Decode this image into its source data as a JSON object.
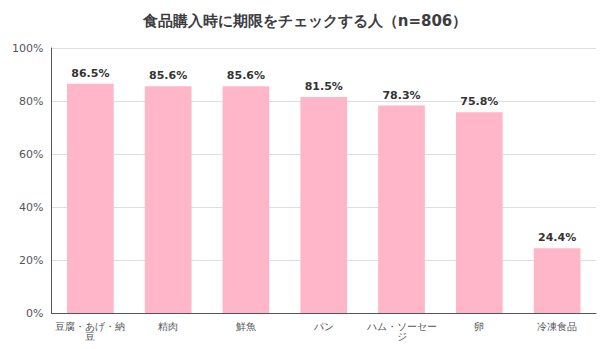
{
  "chart_data": {
    "type": "bar",
    "title": "食品購入時に期限をチェックする人（n=806）",
    "categories": [
      "豆腐・あげ・納豆",
      "精肉",
      "鮮魚",
      "パン",
      "ハム・ソーセージ",
      "卵",
      "冷凍食品"
    ],
    "values": [
      86.5,
      85.6,
      85.6,
      81.5,
      78.3,
      75.8,
      24.4
    ],
    "value_labels": [
      "86.5%",
      "85.6%",
      "85.6%",
      "81.5%",
      "78.3%",
      "75.8%",
      "24.4%"
    ],
    "data_labels": true,
    "color": "#FFB6C8",
    "ylim": [
      0,
      100
    ],
    "yticks": [
      {
        "value": 0,
        "label": "0%"
      },
      {
        "value": 20,
        "label": "20%"
      },
      {
        "value": 40,
        "label": "40%"
      },
      {
        "value": 60,
        "label": "60%"
      },
      {
        "value": 80,
        "label": "80%"
      },
      {
        "value": 100,
        "label": "100%"
      }
    ],
    "grid": true
  }
}
